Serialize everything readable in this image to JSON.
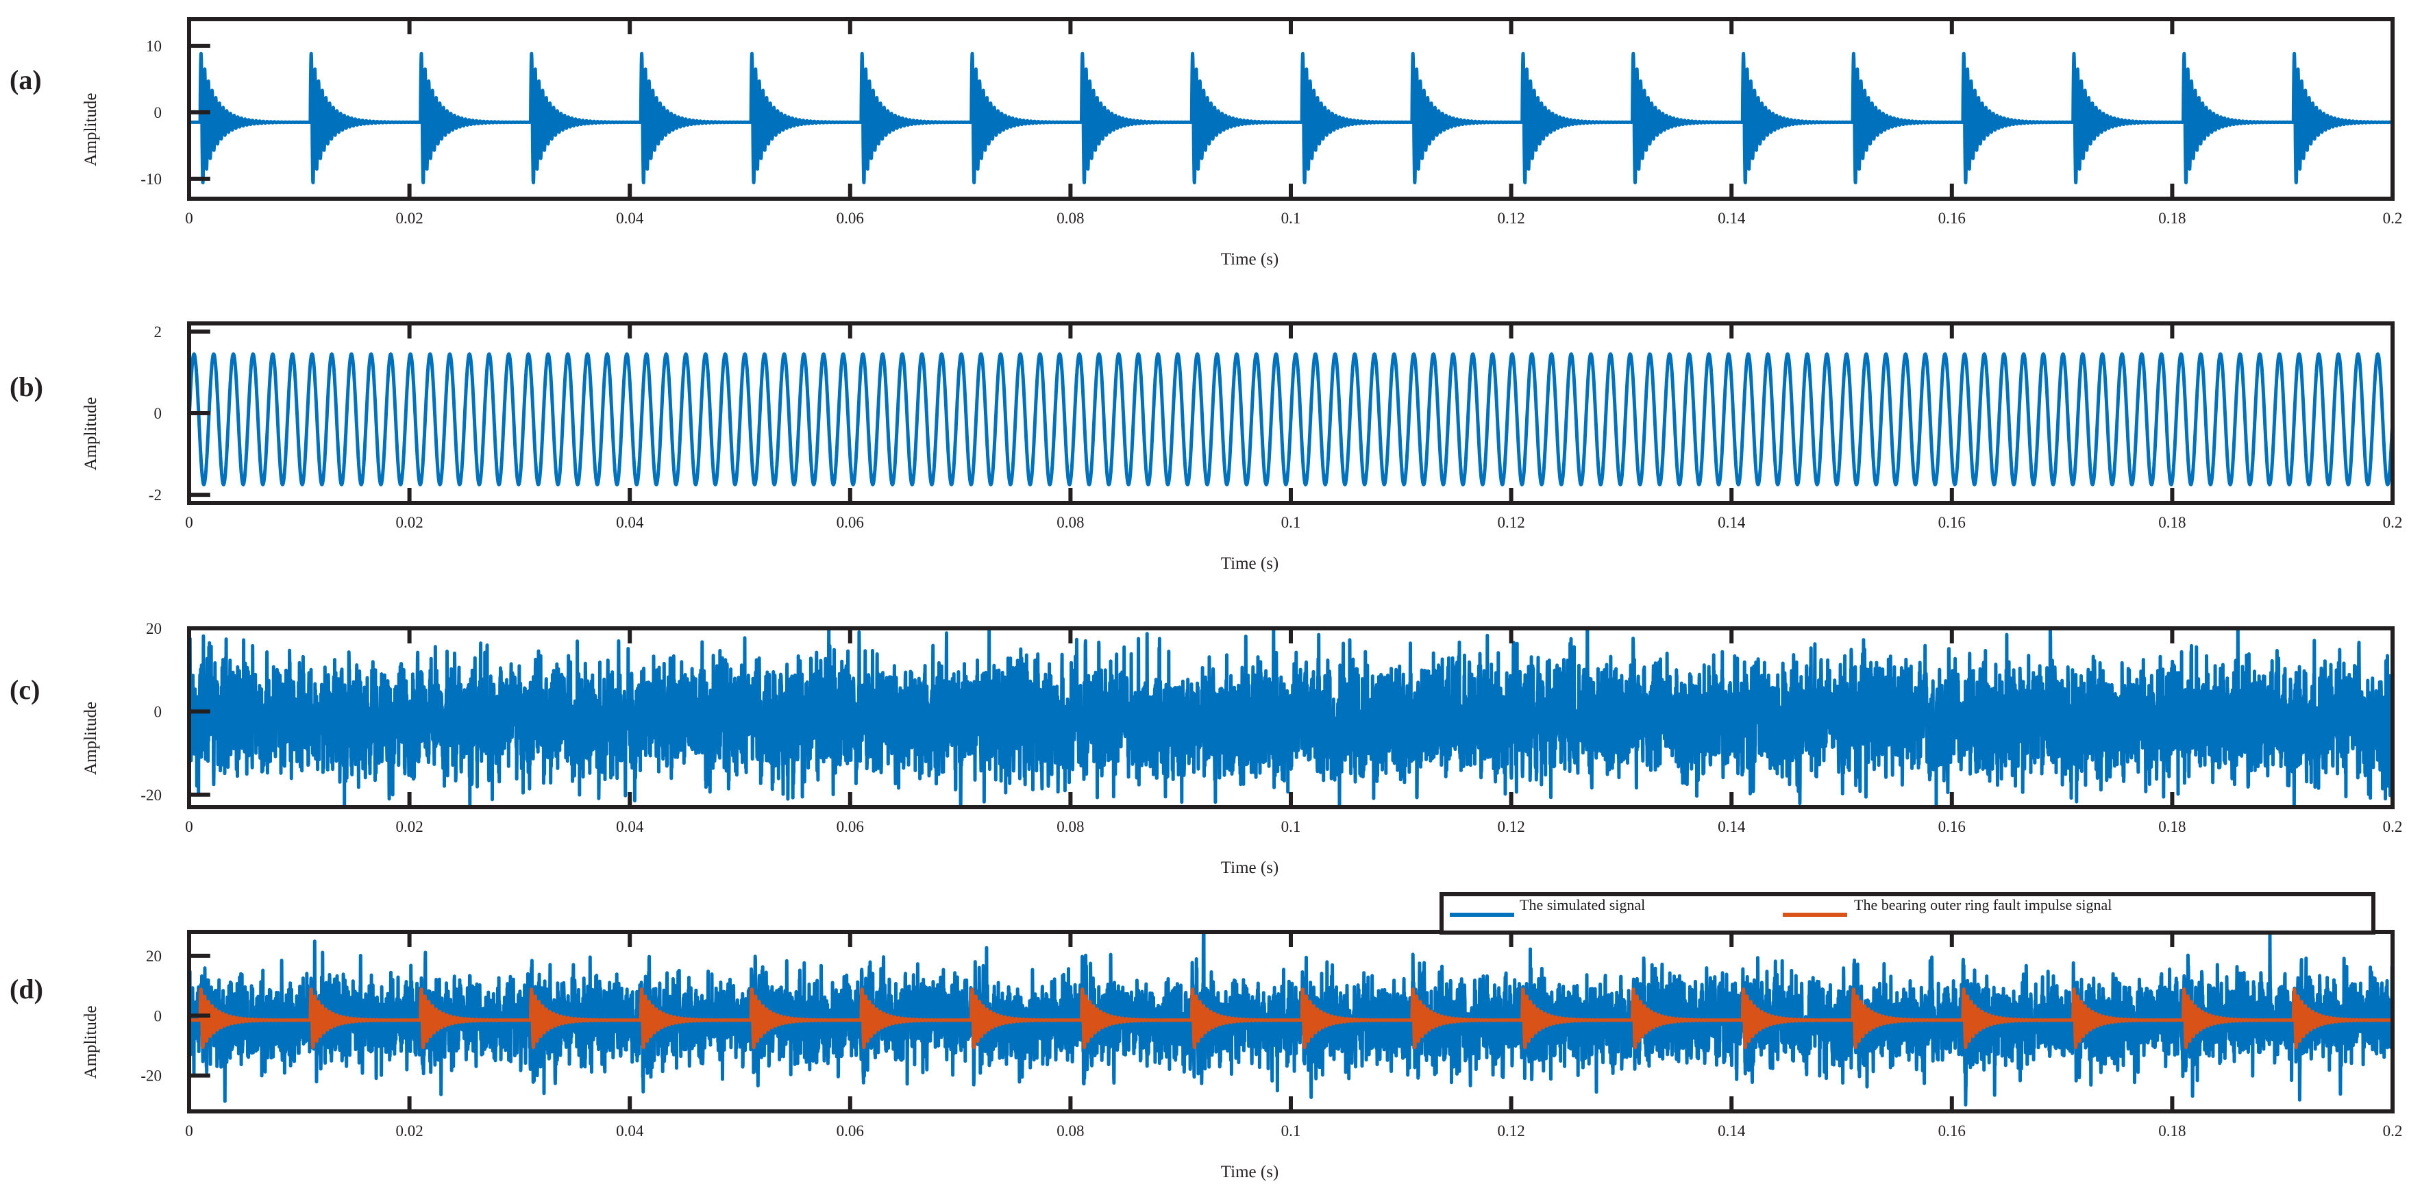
{
  "chart_data": [
    {
      "type": "line",
      "panel_label": "(a)",
      "xlabel": "Time (s)",
      "ylabel": "Amplitude",
      "xlim": [
        0,
        0.2
      ],
      "ylim": [
        -13,
        14
      ],
      "x_ticks": [
        0,
        0.02,
        0.04,
        0.06,
        0.08,
        0.1,
        0.12,
        0.14,
        0.16,
        0.18,
        0.2
      ],
      "y_ticks": [
        10,
        0,
        -10
      ],
      "y_tick_labels": [
        "10",
        "0",
        "-10"
      ],
      "grid": false,
      "series": [
        {
          "kind": "impulses",
          "color": "#0072bd",
          "period_s": 0.01,
          "first_impulse_s": 0.001,
          "peak_amplitude": 11,
          "decay_s": 0.0013,
          "resonance_hz": 3000,
          "baseline": -1.5
        }
      ]
    },
    {
      "type": "line",
      "panel_label": "(b)",
      "xlabel": "Time (s)",
      "ylabel": "Amplitude",
      "xlim": [
        0,
        0.2
      ],
      "ylim": [
        -2.2,
        2.2
      ],
      "x_ticks": [
        0,
        0.02,
        0.04,
        0.06,
        0.08,
        0.1,
        0.12,
        0.14,
        0.16,
        0.18,
        0.2
      ],
      "y_ticks": [
        2,
        0,
        -2
      ],
      "y_tick_labels": [
        "2",
        "0",
        "-2"
      ],
      "grid": false,
      "series": [
        {
          "kind": "sine",
          "color": "#0072bd",
          "frequency_hz": 560,
          "amplitude": 1.6,
          "offset": -0.15
        }
      ]
    },
    {
      "type": "line",
      "panel_label": "(c)",
      "xlabel": "Time (s)",
      "ylabel": "Amplitude",
      "xlim": [
        0,
        0.2
      ],
      "ylim": [
        -23,
        20
      ],
      "x_ticks": [
        0,
        0.02,
        0.04,
        0.06,
        0.08,
        0.1,
        0.12,
        0.14,
        0.16,
        0.18,
        0.2
      ],
      "y_ticks": [
        20,
        0,
        -20
      ],
      "y_tick_labels": [
        "20",
        "0",
        "-20"
      ],
      "grid": false,
      "series": [
        {
          "kind": "noise",
          "color": "#0072bd",
          "std": 6.5,
          "offset": -2
        }
      ]
    },
    {
      "type": "line",
      "panel_label": "(d)",
      "xlabel": "Time (s)",
      "ylabel": "Amplitude",
      "xlim": [
        0,
        0.2
      ],
      "ylim": [
        -32,
        28
      ],
      "x_ticks": [
        0,
        0.02,
        0.04,
        0.06,
        0.08,
        0.1,
        0.12,
        0.14,
        0.16,
        0.18,
        0.2
      ],
      "y_ticks": [
        20,
        0,
        -20
      ],
      "y_tick_labels": [
        "20",
        "0",
        "-20"
      ],
      "grid": false,
      "legend": {
        "placement": "top-right, above axes",
        "entries": [
          "The simulated signal",
          "The bearing outer ring fault impulse signal"
        ]
      },
      "series": [
        {
          "kind": "noise_plus_impulses",
          "name": "The simulated signal",
          "color": "#0072bd",
          "std": 6.5,
          "offset": -2,
          "period_s": 0.01,
          "first_impulse_s": 0.001,
          "peak_amplitude": 13,
          "decay_s": 0.0013,
          "resonance_hz": 3000
        },
        {
          "kind": "impulses",
          "name": "The bearing outer ring fault impulse signal",
          "color": "#d95319",
          "period_s": 0.01,
          "first_impulse_s": 0.001,
          "peak_amplitude": 11,
          "decay_s": 0.0013,
          "resonance_hz": 3000,
          "baseline": -1.5
        }
      ]
    }
  ]
}
